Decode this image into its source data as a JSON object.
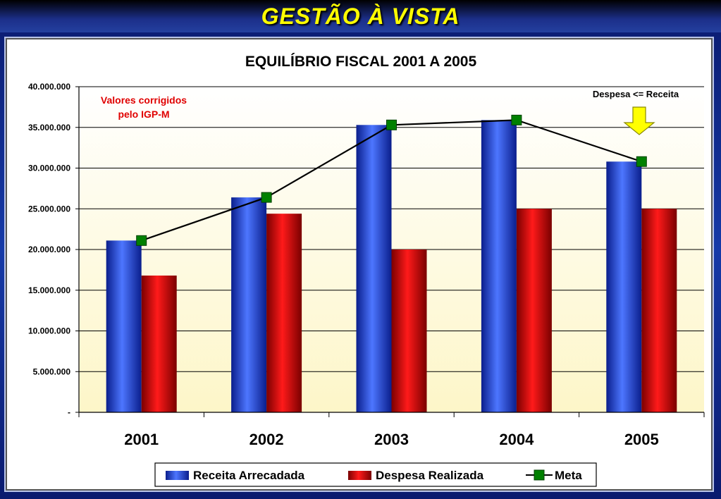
{
  "header": {
    "title": "GESTÃO À VISTA"
  },
  "chart_data": {
    "type": "bar",
    "title": "EQUILÍBRIO FISCAL 2001 A 2005",
    "categories": [
      "2001",
      "2002",
      "2003",
      "2004",
      "2005"
    ],
    "series": [
      {
        "name": "Receita Arrecadada",
        "kind": "bar",
        "color": "#1f3fd0",
        "values": [
          21100000,
          26400000,
          35300000,
          35900000,
          30800000
        ]
      },
      {
        "name": "Despesa Realizada",
        "kind": "bar",
        "color": "#d00000",
        "values": [
          16800000,
          24400000,
          20000000,
          25000000,
          25000000
        ]
      },
      {
        "name": "Meta",
        "kind": "line",
        "color": "#008000",
        "values": [
          21100000,
          26400000,
          35300000,
          35900000,
          30800000
        ]
      }
    ],
    "ylim": [
      0,
      40000000
    ],
    "yticks": [
      0,
      5000000,
      10000000,
      15000000,
      20000000,
      25000000,
      30000000,
      35000000,
      40000000
    ],
    "ytick_labels": [
      "-",
      "5.000.000",
      "10.000.000",
      "15.000.000",
      "20.000.000",
      "25.000.000",
      "30.000.000",
      "35.000.000",
      "40.000.000"
    ],
    "grid": true,
    "legend_position": "bottom",
    "annotations": {
      "note_line1": "Valores corrigidos",
      "note_line2": "pelo IGP-M",
      "callout": "Despesa <= Receita"
    }
  }
}
